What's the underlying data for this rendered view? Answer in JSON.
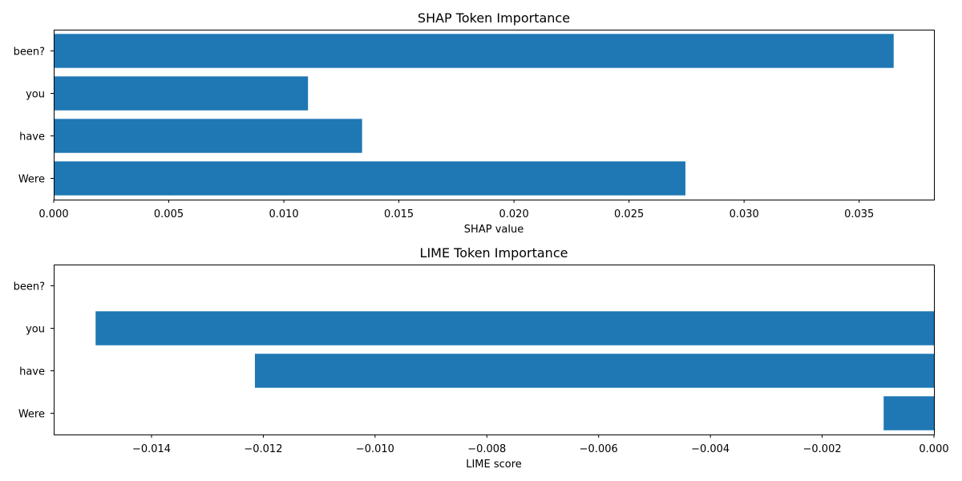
{
  "chart_data": [
    {
      "type": "bar",
      "orientation": "horizontal",
      "title": "SHAP Token Importance",
      "xlabel": "SHAP value",
      "ylabel": "",
      "categories": [
        "Were",
        "have",
        "you",
        "been?"
      ],
      "values": [
        0.02745,
        0.0134,
        0.01105,
        0.0365
      ],
      "xlim": [
        0,
        0.03825
      ],
      "xticks": [
        0.0,
        0.005,
        0.01,
        0.015,
        0.02,
        0.025,
        0.03,
        0.035
      ],
      "xtick_labels": [
        "0.000",
        "0.005",
        "0.010",
        "0.015",
        "0.020",
        "0.025",
        "0.030",
        "0.035"
      ],
      "grid": false,
      "color": "#1f77b4"
    },
    {
      "type": "bar",
      "orientation": "horizontal",
      "title": "LIME Token Importance",
      "xlabel": "LIME score",
      "ylabel": "",
      "categories": [
        "Were",
        "have",
        "you",
        "been?"
      ],
      "values": [
        -0.0009,
        -0.01215,
        -0.015,
        0.0
      ],
      "xlim": [
        -0.01575,
        0.0
      ],
      "xticks": [
        -0.014,
        -0.012,
        -0.01,
        -0.008,
        -0.006,
        -0.004,
        -0.002,
        0.0
      ],
      "xtick_labels": [
        "−0.014",
        "−0.012",
        "−0.010",
        "−0.008",
        "−0.006",
        "−0.004",
        "−0.002",
        "0.000"
      ],
      "grid": false,
      "color": "#1f77b4"
    }
  ]
}
